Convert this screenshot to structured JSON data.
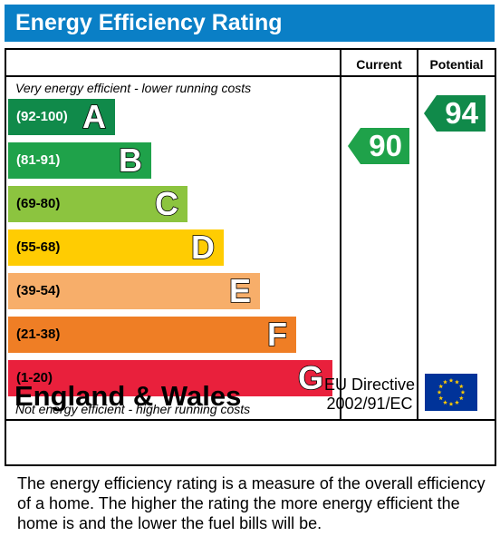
{
  "header": {
    "title": "Energy Efficiency Rating",
    "bg_color": "#0a7fc6"
  },
  "columns": {
    "current": "Current",
    "potential": "Potential"
  },
  "notes": {
    "top": "Very energy efficient - lower running costs",
    "bottom": "Not energy efficient - higher running costs"
  },
  "bands": [
    {
      "range": "(92-100)",
      "letter": "A",
      "color": "#108a4a",
      "text_color": "#ffffff"
    },
    {
      "range": "(81-91)",
      "letter": "B",
      "color": "#1fa24a",
      "text_color": "#ffffff"
    },
    {
      "range": "(69-80)",
      "letter": "C",
      "color": "#8cc43f",
      "text_color": "#000000"
    },
    {
      "range": "(55-68)",
      "letter": "D",
      "color": "#ffcc02",
      "text_color": "#000000"
    },
    {
      "range": "(39-54)",
      "letter": "E",
      "color": "#f7ae6a",
      "text_color": "#000000"
    },
    {
      "range": "(21-38)",
      "letter": "F",
      "color": "#ef7e25",
      "text_color": "#000000"
    },
    {
      "range": "(1-20)",
      "letter": "G",
      "color": "#e9203c",
      "text_color": "#000000"
    }
  ],
  "ratings": {
    "current": {
      "value": "90",
      "color": "#1fa24a"
    },
    "potential": {
      "value": "94",
      "color": "#108a4a"
    }
  },
  "footer": {
    "region": "England & Wales",
    "directive_line1": "EU Directive",
    "directive_line2": "2002/91/EC",
    "flag_icon": "eu-flag-icon"
  },
  "description": "The energy efficiency rating is a measure of the overall efficiency of a home.  The higher the rating the more energy efficient the home is and the lower the fuel bills will be."
}
